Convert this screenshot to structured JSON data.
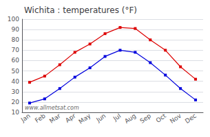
{
  "chart_data": {
    "type": "line",
    "title": "Wichita : temperatures (°F)",
    "categories": [
      "Jan",
      "Feb",
      "Mar",
      "Apr",
      "May",
      "Jun",
      "Jul",
      "Aug",
      "Sep",
      "Oct",
      "Nov",
      "Dec"
    ],
    "series": [
      {
        "color": "#dd0000",
        "values": [
          39,
          45,
          56,
          68,
          76,
          86,
          92,
          91,
          80,
          70,
          54,
          42
        ]
      },
      {
        "color": "#0000dd",
        "values": [
          19,
          23,
          33,
          44,
          53,
          64,
          70,
          68,
          58,
          46,
          33,
          22
        ]
      }
    ],
    "ylim": [
      10,
      100
    ],
    "yticks": [
      10,
      20,
      30,
      40,
      50,
      60,
      70,
      80,
      90,
      100
    ],
    "grid": true,
    "marker": "square",
    "line_style": "solid",
    "annotations": [
      "www.allmetsat.com"
    ]
  }
}
